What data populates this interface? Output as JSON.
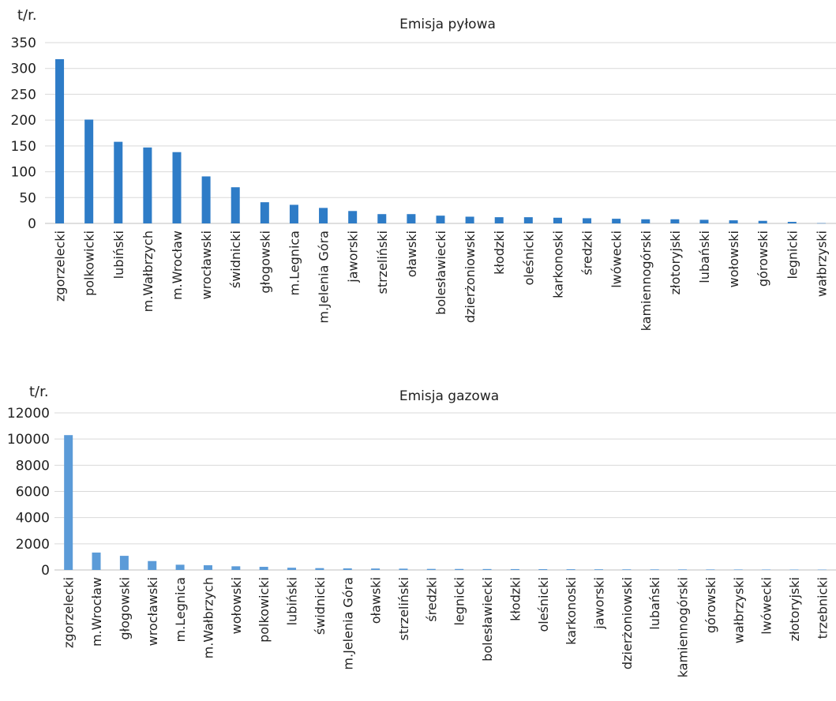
{
  "chart_data": [
    {
      "type": "bar",
      "title": "Emisja pyłowa",
      "ylabel": "t/r.",
      "ylim": [
        0,
        350
      ],
      "ytick_step": 50,
      "grid": true,
      "color": "#2e7cc7",
      "categories": [
        "zgorzelecki",
        "polkowicki",
        "lubiński",
        "m.Wałbrzych",
        "m.Wrocław",
        "wrocławski",
        "świdnicki",
        "głogowski",
        "m.Legnica",
        "m.Jelenia Góra",
        "jaworski",
        "strzeliński",
        "oławski",
        "bolesławiecki",
        "dzierżoniowski",
        "kłodzki",
        "oleśnicki",
        "karkonoski",
        "średzki",
        "lwówecki",
        "kamiennogórski",
        "złotoryjski",
        "lubański",
        "wołowski",
        "górowski",
        "legnicki",
        "wałbrzyski"
      ],
      "values": [
        318,
        201,
        158,
        147,
        138,
        91,
        70,
        41,
        36,
        30,
        24,
        18,
        18,
        15,
        13,
        12,
        12,
        11,
        10,
        9,
        8,
        8,
        7,
        6,
        5,
        3,
        0.5
      ]
    },
    {
      "type": "bar",
      "title": "Emisja gazowa",
      "ylabel": "t/r.",
      "ylim": [
        0,
        12000
      ],
      "ytick_step": 2000,
      "grid": true,
      "color": "#5b9bd8",
      "categories": [
        "zgorzelecki",
        "m.Wrocław",
        "głogowski",
        "wrocławski",
        "m.Legnica",
        "m.Wałbrzych",
        "wołowski",
        "polkowicki",
        "lubiński",
        "świdnicki",
        "m.Jelenia Góra",
        "oławski",
        "strzeliński",
        "średzki",
        "legnicki",
        "bolesławiecki",
        "kłodzki",
        "oleśnicki",
        "karkonoski",
        "jaworski",
        "dzierżoniowski",
        "lubański",
        "kamiennogórski",
        "górowski",
        "wałbrzyski",
        "lwówecki",
        "złotoryjski",
        "trzebnicki"
      ],
      "values": [
        10300,
        1330,
        1080,
        680,
        400,
        360,
        280,
        240,
        170,
        140,
        120,
        110,
        100,
        80,
        75,
        70,
        65,
        60,
        55,
        50,
        45,
        42,
        40,
        38,
        35,
        32,
        30,
        28
      ]
    }
  ]
}
